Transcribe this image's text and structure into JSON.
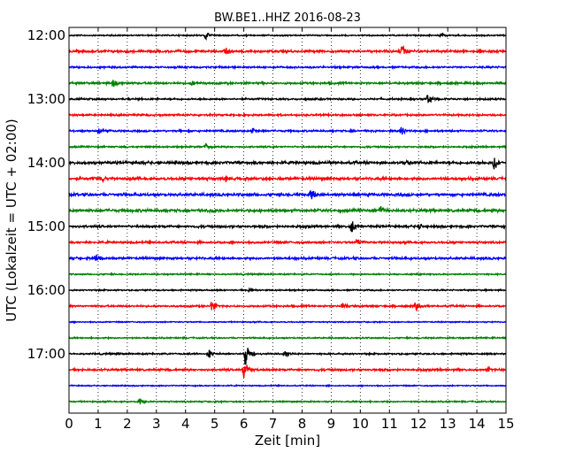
{
  "chart_data": {
    "type": "line",
    "title": "BW.BE1..HHZ 2016-08-23",
    "xlabel": "Zeit  [min]",
    "ylabel": "UTC (Lokalzeit = UTC + 02:00)",
    "xlim": [
      0,
      15
    ],
    "x_ticks": [
      "0",
      "1",
      "2",
      "3",
      "4",
      "5",
      "6",
      "7",
      "8",
      "9",
      "10",
      "11",
      "12",
      "13",
      "14",
      "15"
    ],
    "y_tick_labels": [
      "12:00",
      "13:00",
      "14:00",
      "15:00",
      "16:00",
      "17:00"
    ],
    "grid": "vertical dotted",
    "trace_interval_minutes": 15,
    "traces": [
      {
        "start": "12:00",
        "color": "#000000",
        "noise": 0.6,
        "events": [
          {
            "t": 4.7,
            "amp": 5
          },
          {
            "t": 12.8,
            "amp": 3
          }
        ]
      },
      {
        "start": "12:15",
        "color": "#ff0000",
        "noise": 1.0,
        "events": [
          {
            "t": 5.4,
            "amp": 5
          },
          {
            "t": 11.4,
            "amp": 9
          },
          {
            "t": 14.1,
            "amp": 3
          }
        ]
      },
      {
        "start": "12:30",
        "color": "#0000ff",
        "noise": 0.8,
        "events": []
      },
      {
        "start": "12:45",
        "color": "#008000",
        "noise": 0.9,
        "events": [
          {
            "t": 1.5,
            "amp": 5
          },
          {
            "t": 4.2,
            "amp": 3
          }
        ]
      },
      {
        "start": "13:00",
        "color": "#000000",
        "noise": 0.8,
        "events": [
          {
            "t": 12.3,
            "amp": 7
          }
        ]
      },
      {
        "start": "13:15",
        "color": "#ff0000",
        "noise": 0.8,
        "events": []
      },
      {
        "start": "13:30",
        "color": "#0000ff",
        "noise": 0.8,
        "events": [
          {
            "t": 1.0,
            "amp": 4
          },
          {
            "t": 6.3,
            "amp": 4
          },
          {
            "t": 11.4,
            "amp": 6
          }
        ]
      },
      {
        "start": "13:45",
        "color": "#008000",
        "noise": 0.7,
        "events": [
          {
            "t": 4.7,
            "amp": 3
          }
        ]
      },
      {
        "start": "14:00",
        "color": "#000000",
        "noise": 1.2,
        "events": [
          {
            "t": 14.6,
            "amp": 10
          },
          {
            "t": 11.6,
            "amp": 3
          }
        ]
      },
      {
        "start": "14:15",
        "color": "#ff0000",
        "noise": 1.2,
        "events": [
          {
            "t": 1.1,
            "amp": 4
          },
          {
            "t": 5.4,
            "amp": 3
          }
        ]
      },
      {
        "start": "14:30",
        "color": "#0000ff",
        "noise": 1.2,
        "events": [
          {
            "t": 8.3,
            "amp": 7
          }
        ]
      },
      {
        "start": "14:45",
        "color": "#008000",
        "noise": 1.2,
        "events": [
          {
            "t": 10.7,
            "amp": 6
          },
          {
            "t": 4.9,
            "amp": 3
          }
        ]
      },
      {
        "start": "15:00",
        "color": "#000000",
        "noise": 1.0,
        "events": [
          {
            "t": 9.7,
            "amp": 8
          },
          {
            "t": 12.0,
            "amp": 4
          }
        ]
      },
      {
        "start": "15:15",
        "color": "#ff0000",
        "noise": 0.9,
        "events": [
          {
            "t": 9.9,
            "amp": 5
          }
        ]
      },
      {
        "start": "15:30",
        "color": "#0000ff",
        "noise": 1.0,
        "events": [
          {
            "t": 0.9,
            "amp": 5
          }
        ]
      },
      {
        "start": "15:45",
        "color": "#008000",
        "noise": 0.6,
        "events": []
      },
      {
        "start": "16:00",
        "color": "#000000",
        "noise": 0.6,
        "events": [
          {
            "t": 6.2,
            "amp": 3
          }
        ]
      },
      {
        "start": "16:15",
        "color": "#ff0000",
        "noise": 0.8,
        "events": [
          {
            "t": 4.9,
            "amp": 7
          },
          {
            "t": 9.4,
            "amp": 4
          },
          {
            "t": 11.9,
            "amp": 6
          }
        ]
      },
      {
        "start": "16:30",
        "color": "#0000ff",
        "noise": 0.5,
        "events": []
      },
      {
        "start": "16:45",
        "color": "#008000",
        "noise": 0.6,
        "events": []
      },
      {
        "start": "17:00",
        "color": "#000000",
        "noise": 0.7,
        "events": [
          {
            "t": 4.8,
            "amp": 6
          },
          {
            "t": 6.05,
            "amp": 14
          },
          {
            "t": 7.4,
            "amp": 5
          }
        ]
      },
      {
        "start": "17:15",
        "color": "#ff0000",
        "noise": 0.9,
        "events": [
          {
            "t": 6.0,
            "amp": 12
          },
          {
            "t": 14.4,
            "amp": 3
          }
        ]
      },
      {
        "start": "17:30",
        "color": "#0000ff",
        "noise": 0.5,
        "events": []
      },
      {
        "start": "17:45",
        "color": "#008000",
        "noise": 0.6,
        "events": [
          {
            "t": 2.4,
            "amp": 5
          }
        ]
      }
    ]
  }
}
